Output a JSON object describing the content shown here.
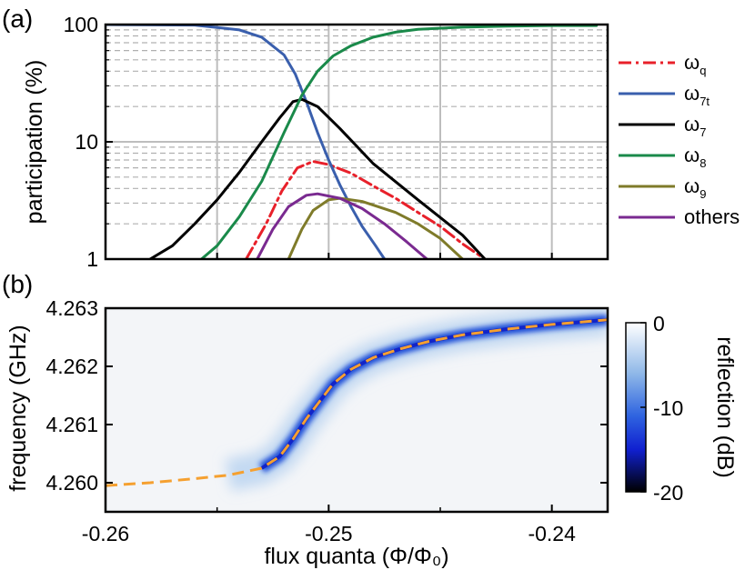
{
  "panel_a_label": "(a)",
  "panel_b_label": "(b)",
  "chart_data": [
    {
      "type": "line",
      "panel": "(a)",
      "ylabel": "participation (%)",
      "yscale": "log",
      "ylim": [
        1,
        100
      ],
      "xlim": [
        -0.26,
        -0.2375
      ],
      "ytick_labels": [
        "1",
        "10",
        "100"
      ],
      "grid": true,
      "legend_position": "right",
      "series": [
        {
          "name": "ω",
          "sub": "q",
          "color": "#e8202a",
          "dash": "dashdot",
          "x": [
            -0.2537,
            -0.2528,
            -0.2521,
            -0.2514,
            -0.2507,
            -0.25,
            -0.249,
            -0.248,
            -0.247,
            -0.246,
            -0.245,
            -0.244,
            -0.243
          ],
          "y": [
            1.0,
            2.0,
            3.8,
            6.0,
            6.8,
            6.4,
            5.4,
            4.2,
            3.3,
            2.5,
            1.9,
            1.35,
            1.0
          ]
        },
        {
          "name": "ω",
          "sub": "7t",
          "color": "#3a5fad",
          "dash": "solid",
          "x": [
            -0.26,
            -0.256,
            -0.254,
            -0.253,
            -0.252,
            -0.2515,
            -0.251,
            -0.2505,
            -0.25,
            -0.2495,
            -0.249,
            -0.2485,
            -0.2479,
            -0.2475
          ],
          "y": [
            100,
            99,
            90,
            78,
            55,
            38,
            22,
            12,
            7.0,
            4.3,
            2.8,
            1.9,
            1.3,
            1.0
          ]
        },
        {
          "name": "ω",
          "sub": "7",
          "color": "#000000",
          "dash": "solid",
          "x": [
            -0.258,
            -0.257,
            -0.256,
            -0.255,
            -0.254,
            -0.253,
            -0.2522,
            -0.2516,
            -0.2512,
            -0.2505,
            -0.2495,
            -0.248,
            -0.246,
            -0.244,
            -0.243
          ],
          "y": [
            1.0,
            1.3,
            2.0,
            3.2,
            5.5,
            10,
            16,
            22,
            23,
            20,
            13,
            6.5,
            3.2,
            1.6,
            1.0
          ]
        },
        {
          "name": "ω",
          "sub": "8",
          "color": "#1a8a4a",
          "dash": "solid",
          "x": [
            -0.2557,
            -0.255,
            -0.254,
            -0.253,
            -0.252,
            -0.2512,
            -0.2505,
            -0.2498,
            -0.249,
            -0.248,
            -0.247,
            -0.246,
            -0.244,
            -0.242,
            -0.24,
            -0.238
          ],
          "y": [
            1.0,
            1.3,
            2.3,
            4.6,
            12,
            25,
            40,
            54,
            66,
            78,
            86,
            91,
            95,
            97,
            98,
            98
          ]
        },
        {
          "name": "ω",
          "sub": "9",
          "color": "#7f7b2a",
          "dash": "solid",
          "x": [
            -0.2518,
            -0.2512,
            -0.2507,
            -0.25,
            -0.2495,
            -0.2485,
            -0.247,
            -0.246,
            -0.245,
            -0.244
          ],
          "y": [
            1.0,
            1.8,
            2.6,
            3.2,
            3.3,
            3.1,
            2.5,
            2.0,
            1.5,
            1.0
          ]
        },
        {
          "name": "others",
          "sub": "",
          "color": "#7a2a90",
          "dash": "solid",
          "x": [
            -0.2532,
            -0.2525,
            -0.2518,
            -0.251,
            -0.2505,
            -0.2495,
            -0.2485,
            -0.2475,
            -0.2465,
            -0.2456
          ],
          "y": [
            1.0,
            1.8,
            2.8,
            3.5,
            3.6,
            3.3,
            2.7,
            2.0,
            1.4,
            1.0
          ]
        }
      ]
    },
    {
      "type": "heatmap",
      "panel": "(b)",
      "xlabel": "flux quanta (Φ/Φ₀)",
      "ylabel": "frequency (GHz)",
      "xlim": [
        -0.26,
        -0.2375
      ],
      "ylim": [
        4.2595,
        4.263
      ],
      "xtick_values": [
        -0.26,
        -0.25,
        -0.24
      ],
      "xtick_labels": [
        "-0.26",
        "-0.25",
        "-0.24"
      ],
      "ytick_values": [
        4.26,
        4.261,
        4.262,
        4.263
      ],
      "ytick_labels": [
        "4.260",
        "4.261",
        "4.262",
        "4.263"
      ],
      "colorbar": {
        "label": "reflection (dB)",
        "range": [
          -20,
          0
        ],
        "tick_values": [
          0,
          -10,
          -20
        ],
        "tick_labels": [
          "0",
          "-10",
          "-20"
        ],
        "colors": [
          "#ffffff",
          "#8fb8e8",
          "#2f64e0",
          "#1020d0",
          "#000000"
        ]
      },
      "fit_line": {
        "color": "#f5a030",
        "dash": "dashed",
        "x": [
          -0.26,
          -0.258,
          -0.256,
          -0.2545,
          -0.253,
          -0.2522,
          -0.2516,
          -0.251,
          -0.2504,
          -0.2498,
          -0.249,
          -0.248,
          -0.2468,
          -0.2455,
          -0.244,
          -0.242,
          -0.24,
          -0.2375
        ],
        "y": [
          4.25995,
          4.26,
          4.26007,
          4.26013,
          4.26025,
          4.26045,
          4.26075,
          4.2611,
          4.2614,
          4.2617,
          4.26195,
          4.26215,
          4.2623,
          4.26243,
          4.26254,
          4.26264,
          4.26272,
          4.2628
        ]
      }
    }
  ]
}
